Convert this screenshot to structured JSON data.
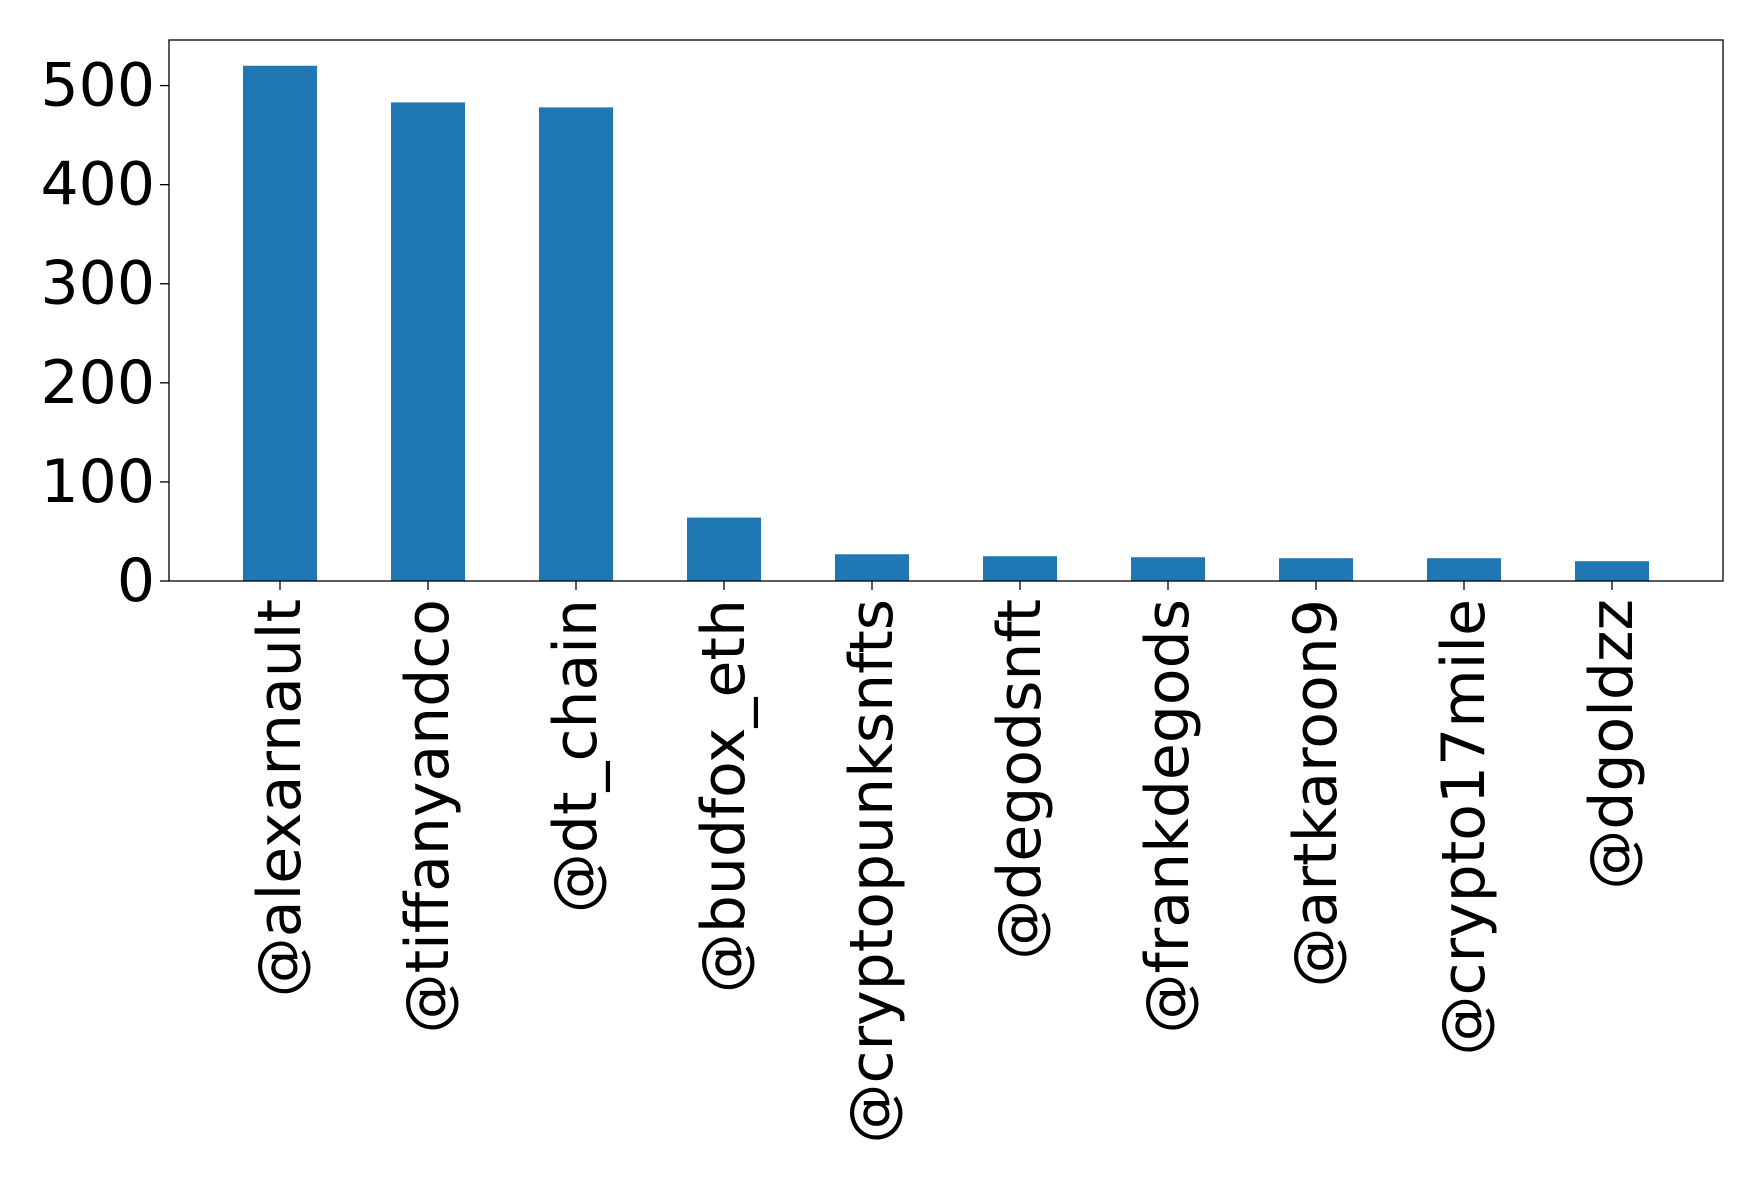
{
  "chart_data": {
    "type": "bar",
    "categories": [
      "@alexarnault",
      "@tiffanyandco",
      "@dt_chain",
      "@budfox_eth",
      "@cryptopunksnfts",
      "@degodsnft",
      "@frankdegods",
      "@artkaroon9",
      "@crypto17mile",
      "@dgoldzz"
    ],
    "values": [
      520,
      483,
      478,
      64,
      27,
      25,
      24,
      23,
      23,
      20
    ],
    "yticks": [
      0,
      100,
      200,
      300,
      400,
      500
    ],
    "ylim": [
      0,
      546
    ],
    "title": "",
    "xlabel": "",
    "ylabel": "",
    "grid": false,
    "legend": "none",
    "bar_color": "#1f77b4"
  }
}
